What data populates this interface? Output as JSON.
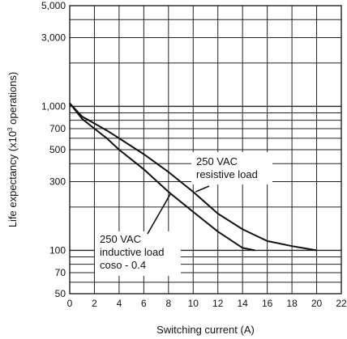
{
  "chart_data": {
    "type": "line",
    "xlabel": "Switching current (A)",
    "ylabel_main": "Life expectancy (x10",
    "ylabel_sup": "3",
    "ylabel_tail": " operations)",
    "xlim": [
      0,
      22
    ],
    "ylim": [
      50,
      5000
    ],
    "y_scale": "log",
    "grid": true,
    "x_ticks": [
      0,
      2,
      4,
      6,
      8,
      10,
      12,
      14,
      16,
      18,
      20,
      22
    ],
    "x_tick_labels": [
      "0",
      "2",
      "4",
      "6",
      "8",
      "10",
      "12",
      "14",
      "16",
      "18",
      "20",
      "22"
    ],
    "y_ticks": [
      50,
      70,
      100,
      300,
      500,
      700,
      1000,
      3000,
      5000
    ],
    "y_tick_labels": [
      "50",
      "70",
      "100",
      "300",
      "500",
      "700",
      "1,000",
      "3,000",
      "5,000"
    ],
    "series": [
      {
        "name": "250 VAC resistive load",
        "x": [
          0,
          1,
          2,
          3,
          4,
          6,
          8,
          10,
          12,
          14,
          16,
          18,
          20
        ],
        "y": [
          1050,
          850,
          760,
          680,
          600,
          465,
          350,
          255,
          180,
          140,
          116,
          107,
          100
        ]
      },
      {
        "name": "250 VAC inductive load coso - 0.4",
        "x": [
          0,
          1,
          2,
          3,
          4,
          6,
          8,
          10,
          12,
          14,
          15
        ],
        "y": [
          1050,
          820,
          700,
          600,
          500,
          365,
          255,
          185,
          135,
          104,
          100
        ]
      }
    ],
    "annotations": [
      {
        "lines": [
          "250 VAC",
          "resistive load"
        ]
      },
      {
        "lines": [
          "250 VAC",
          "inductive load",
          "coso - 0.4"
        ]
      }
    ]
  }
}
